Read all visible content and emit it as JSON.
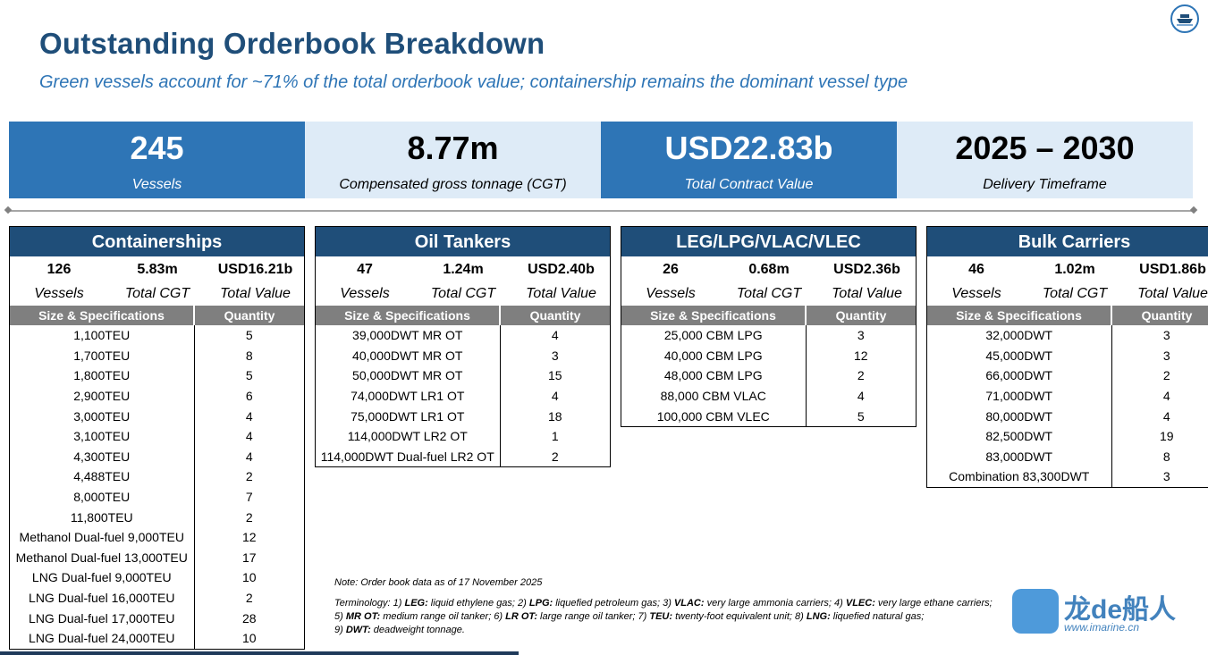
{
  "title": "Outstanding Orderbook Breakdown",
  "subtitle": "Green vessels account for ~71% of the total orderbook value; containership remains the dominant vessel type",
  "logo_icon": "ship-emblem-icon",
  "kpis": [
    {
      "value": "245",
      "label": "Vessels"
    },
    {
      "value": "8.77m",
      "label": "Compensated gross tonnage (CGT)"
    },
    {
      "value": "USD22.83b",
      "label": "Total Contract Value"
    },
    {
      "value": "2025 – 2030",
      "label": "Delivery Timeframe"
    }
  ],
  "colors": {
    "dark_blue": "#1f4e79",
    "mid_blue": "#2e75b6",
    "light_blue": "#deebf7",
    "grey_header": "#7f7f7f"
  },
  "table_headers": {
    "spec": "Size & Specifications",
    "qty": "Quantity"
  },
  "stat_labels": {
    "vessels": "Vessels",
    "cgt": "Total CGT",
    "value": "Total Value"
  },
  "segments": [
    {
      "name": "Containerships",
      "vessels": "126",
      "cgt": "5.83m",
      "value": "USD16.21b",
      "rows": [
        [
          "1,100TEU",
          "5"
        ],
        [
          "1,700TEU",
          "8"
        ],
        [
          "1,800TEU",
          "5"
        ],
        [
          "2,900TEU",
          "6"
        ],
        [
          "3,000TEU",
          "4"
        ],
        [
          "3,100TEU",
          "4"
        ],
        [
          "4,300TEU",
          "4"
        ],
        [
          "4,488TEU",
          "2"
        ],
        [
          "8,000TEU",
          "7"
        ],
        [
          "11,800TEU",
          "2"
        ],
        [
          "Methanol Dual-fuel 9,000TEU",
          "12"
        ],
        [
          "Methanol Dual-fuel 13,000TEU",
          "17"
        ],
        [
          "LNG Dual-fuel 9,000TEU",
          "10"
        ],
        [
          "LNG Dual-fuel 16,000TEU",
          "2"
        ],
        [
          "LNG Dual-fuel 17,000TEU",
          "28"
        ],
        [
          "LNG Dual-fuel 24,000TEU",
          "10"
        ]
      ]
    },
    {
      "name": "Oil Tankers",
      "vessels": "47",
      "cgt": "1.24m",
      "value": "USD2.40b",
      "rows": [
        [
          "39,000DWT MR OT",
          "4"
        ],
        [
          "40,000DWT MR OT",
          "3"
        ],
        [
          "50,000DWT MR OT",
          "15"
        ],
        [
          "74,000DWT LR1 OT",
          "4"
        ],
        [
          "75,000DWT LR1 OT",
          "18"
        ],
        [
          "114,000DWT LR2 OT",
          "1"
        ],
        [
          "114,000DWT Dual-fuel LR2 OT",
          "2"
        ]
      ]
    },
    {
      "name": "LEG/LPG/VLAC/VLEC",
      "vessels": "26",
      "cgt": "0.68m",
      "value": "USD2.36b",
      "rows": [
        [
          "25,000 CBM LPG",
          "3"
        ],
        [
          "40,000 CBM LPG",
          "12"
        ],
        [
          "48,000 CBM LPG",
          "2"
        ],
        [
          "88,000 CBM VLAC",
          "4"
        ],
        [
          "100,000 CBM VLEC",
          "5"
        ]
      ]
    },
    {
      "name": "Bulk Carriers",
      "vessels": "46",
      "cgt": "1.02m",
      "value": "USD1.86b",
      "rows": [
        [
          "32,000DWT",
          "3"
        ],
        [
          "45,000DWT",
          "3"
        ],
        [
          "66,000DWT",
          "2"
        ],
        [
          "71,000DWT",
          "4"
        ],
        [
          "80,000DWT",
          "4"
        ],
        [
          "82,500DWT",
          "19"
        ],
        [
          "83,000DWT",
          "8"
        ],
        [
          "Combination 83,300DWT",
          "3"
        ]
      ]
    }
  ],
  "note": "Note: Order book data as of 17 November 2025",
  "terminology": {
    "prefix": "Terminology: 1) ",
    "items": [
      {
        "term": "LEG:",
        "def": " liquid ethylene gas; 2) "
      },
      {
        "term": "LPG:",
        "def": " liquefied petroleum gas; 3) "
      },
      {
        "term": "VLAC:",
        "def": " very large ammonia carriers; 4) "
      },
      {
        "term": "VLEC:",
        "def": " very large ethane carriers;"
      },
      {
        "term": "MR OT:",
        "def": " medium range oil tanker; 6) "
      },
      {
        "term": "LR OT:",
        "def": " large range oil tanker; 7) "
      },
      {
        "term": "TEU:",
        "def": " twenty-foot equivalent unit; 8) "
      },
      {
        "term": "LNG:",
        "def": " liquefied natural gas;"
      },
      {
        "term": "DWT:",
        "def": " deadweight tonnage."
      }
    ],
    "line2_prefix": "5) ",
    "line3_prefix": "9) "
  },
  "watermark": {
    "text": "龙de船人",
    "url": "www.imarine.cn"
  }
}
